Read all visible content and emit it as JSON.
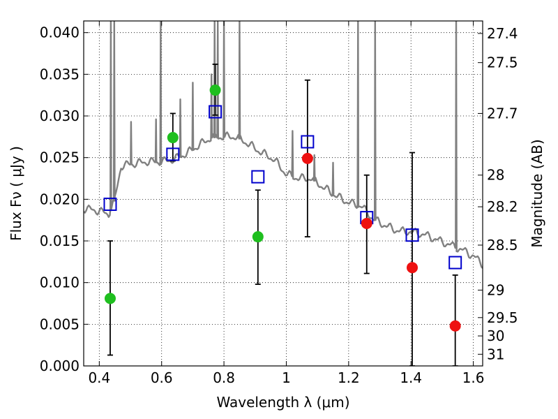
{
  "chart_data": {
    "type": "scatter",
    "xlabel": "Wavelength  λ (μm)",
    "ylabel": "Flux  Fν  ( μJy )",
    "ylabel_right": "Magnitude (AB)",
    "xlim": [
      0.35,
      1.63
    ],
    "ylim": [
      0.0,
      0.0414
    ],
    "grid": true,
    "x_ticks": [
      0.4,
      0.6,
      0.8,
      1.0,
      1.2,
      1.4,
      1.6
    ],
    "x_tick_labels": [
      "0.4",
      "0.6",
      "0.8",
      "1",
      "1.2",
      "1.4",
      "1.6"
    ],
    "y_ticks": [
      0.0,
      0.005,
      0.01,
      0.015,
      0.02,
      0.025,
      0.03,
      0.035,
      0.04
    ],
    "y_tick_labels": [
      "0.000",
      "0.005",
      "0.010",
      "0.015",
      "0.020",
      "0.025",
      "0.030",
      "0.035",
      "0.040"
    ],
    "right_ticks": [
      {
        "label": "27.4",
        "flux": 0.0399
      },
      {
        "label": "27.5",
        "flux": 0.0364
      },
      {
        "label": "27.7",
        "flux": 0.0303
      },
      {
        "label": "28",
        "flux": 0.0229
      },
      {
        "label": "28.2",
        "flux": 0.0191
      },
      {
        "label": "28.5",
        "flux": 0.0145
      },
      {
        "label": "29",
        "flux": 0.0091
      },
      {
        "label": "29.5",
        "flux": 0.0058
      },
      {
        "label": "30",
        "flux": 0.0036
      },
      {
        "label": "31",
        "flux": 0.0014
      }
    ],
    "colors": {
      "green": "#1fbf1f",
      "red": "#ee1111",
      "model_box": "#0000cc",
      "spectrum": "#808080"
    },
    "observed_green": [
      {
        "x": 0.435,
        "y": 0.0081,
        "err_lo": 0.0013,
        "err_hi": 0.015
      },
      {
        "x": 0.636,
        "y": 0.0274,
        "err_lo": 0.0246,
        "err_hi": 0.0303
      },
      {
        "x": 0.772,
        "y": 0.0331,
        "err_lo": 0.0301,
        "err_hi": 0.0362
      },
      {
        "x": 0.909,
        "y": 0.0155,
        "err_lo": 0.0098,
        "err_hi": 0.0211
      }
    ],
    "observed_red": [
      {
        "x": 1.068,
        "y": 0.0249,
        "err_lo": 0.0155,
        "err_hi": 0.0343
      },
      {
        "x": 1.258,
        "y": 0.0171,
        "err_lo": 0.0111,
        "err_hi": 0.0229
      },
      {
        "x": 1.404,
        "y": 0.0118,
        "err_lo": 0.0,
        "err_hi": 0.0256
      },
      {
        "x": 1.542,
        "y": 0.0048,
        "err_lo": 0.0,
        "err_hi": 0.0109
      }
    ],
    "model_points": [
      {
        "x": 0.435,
        "y": 0.0194
      },
      {
        "x": 0.636,
        "y": 0.0254
      },
      {
        "x": 0.772,
        "y": 0.0305
      },
      {
        "x": 0.909,
        "y": 0.0227
      },
      {
        "x": 1.068,
        "y": 0.0269
      },
      {
        "x": 1.258,
        "y": 0.0178
      },
      {
        "x": 1.404,
        "y": 0.0157
      },
      {
        "x": 1.542,
        "y": 0.0124
      }
    ],
    "spectrum_continuum": [
      [
        0.35,
        0.0189
      ],
      [
        0.4,
        0.0186
      ],
      [
        0.43,
        0.0182
      ],
      [
        0.45,
        0.02
      ],
      [
        0.47,
        0.024
      ],
      [
        0.5,
        0.0242
      ],
      [
        0.55,
        0.0245
      ],
      [
        0.6,
        0.0245
      ],
      [
        0.64,
        0.0248
      ],
      [
        0.68,
        0.0255
      ],
      [
        0.72,
        0.0265
      ],
      [
        0.76,
        0.0274
      ],
      [
        0.8,
        0.0275
      ],
      [
        0.84,
        0.0275
      ],
      [
        0.88,
        0.0266
      ],
      [
        0.92,
        0.0256
      ],
      [
        0.96,
        0.0248
      ],
      [
        1.0,
        0.023
      ],
      [
        1.04,
        0.0225
      ],
      [
        1.08,
        0.0225
      ],
      [
        1.12,
        0.0214
      ],
      [
        1.16,
        0.0204
      ],
      [
        1.2,
        0.0196
      ],
      [
        1.24,
        0.0192
      ],
      [
        1.28,
        0.0176
      ],
      [
        1.32,
        0.0168
      ],
      [
        1.36,
        0.0162
      ],
      [
        1.4,
        0.0161
      ],
      [
        1.44,
        0.0158
      ],
      [
        1.48,
        0.0152
      ],
      [
        1.52,
        0.0146
      ],
      [
        1.56,
        0.014
      ],
      [
        1.6,
        0.0132
      ],
      [
        1.63,
        0.0122
      ]
    ],
    "spectrum_lines": [
      {
        "x": 0.437,
        "peak": 0.0414
      },
      {
        "x": 0.448,
        "peak": 0.0414
      },
      {
        "x": 0.502,
        "peak": 0.0293
      },
      {
        "x": 0.582,
        "peak": 0.0296
      },
      {
        "x": 0.597,
        "peak": 0.0414
      },
      {
        "x": 0.66,
        "peak": 0.032
      },
      {
        "x": 0.7,
        "peak": 0.034
      },
      {
        "x": 0.76,
        "peak": 0.035
      },
      {
        "x": 0.77,
        "peak": 0.0414
      },
      {
        "x": 0.78,
        "peak": 0.0414
      },
      {
        "x": 0.8,
        "peak": 0.0414
      },
      {
        "x": 0.85,
        "peak": 0.0414
      },
      {
        "x": 1.02,
        "peak": 0.0282
      },
      {
        "x": 1.09,
        "peak": 0.0253
      },
      {
        "x": 1.15,
        "peak": 0.0244
      },
      {
        "x": 1.23,
        "peak": 0.0414
      },
      {
        "x": 1.285,
        "peak": 0.0414
      },
      {
        "x": 1.545,
        "peak": 0.0414
      }
    ]
  }
}
